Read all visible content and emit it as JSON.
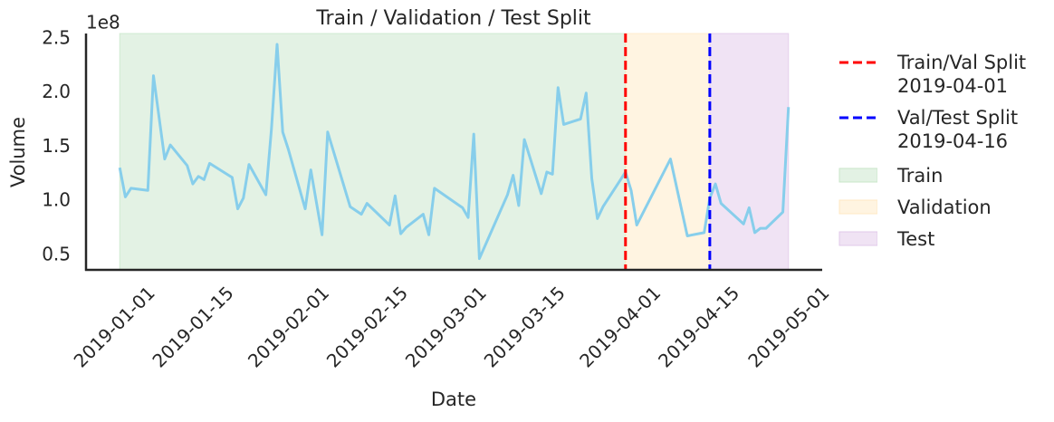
{
  "chart_data": {
    "type": "line",
    "title": "Train / Validation / Test Split",
    "xlabel": "Date",
    "ylabel": "Volume",
    "y_offset_text": "1e8",
    "x": [
      "2019-01-01",
      "2019-01-02",
      "2019-01-03",
      "2019-01-06",
      "2019-01-07",
      "2019-01-09",
      "2019-01-10",
      "2019-01-13",
      "2019-01-14",
      "2019-01-15",
      "2019-01-16",
      "2019-01-17",
      "2019-01-21",
      "2019-01-22",
      "2019-01-23",
      "2019-01-24",
      "2019-01-27",
      "2019-01-28",
      "2019-01-29",
      "2019-01-30",
      "2019-01-31",
      "2019-02-03",
      "2019-02-04",
      "2019-02-06",
      "2019-02-07",
      "2019-02-11",
      "2019-02-13",
      "2019-02-14",
      "2019-02-18",
      "2019-02-19",
      "2019-02-20",
      "2019-02-21",
      "2019-02-24",
      "2019-02-25",
      "2019-02-26",
      "2019-03-03",
      "2019-03-04",
      "2019-03-05",
      "2019-03-06",
      "2019-03-11",
      "2019-03-12",
      "2019-03-13",
      "2019-03-14",
      "2019-03-17",
      "2019-03-18",
      "2019-03-19",
      "2019-03-20",
      "2019-03-21",
      "2019-03-24",
      "2019-03-25",
      "2019-03-26",
      "2019-03-27",
      "2019-03-28",
      "2019-03-31",
      "2019-04-01",
      "2019-04-02",
      "2019-04-03",
      "2019-04-09",
      "2019-04-12",
      "2019-04-15",
      "2019-04-16",
      "2019-04-17",
      "2019-04-18",
      "2019-04-22",
      "2019-04-23",
      "2019-04-24",
      "2019-04-25",
      "2019-04-26",
      "2019-04-29",
      "2019-04-30"
    ],
    "series": [
      {
        "color": "#87ceeb",
        "values": [
          1.31,
          1.04,
          1.12,
          1.1,
          2.16,
          1.39,
          1.52,
          1.33,
          1.16,
          1.23,
          1.2,
          1.35,
          1.22,
          0.93,
          1.03,
          1.34,
          1.06,
          1.67,
          2.45,
          1.64,
          1.48,
          0.93,
          1.29,
          0.69,
          1.64,
          0.95,
          0.88,
          0.98,
          0.78,
          1.05,
          0.7,
          0.76,
          0.88,
          0.69,
          1.12,
          0.94,
          0.85,
          1.62,
          0.47,
          1.06,
          1.24,
          0.96,
          1.57,
          1.07,
          1.27,
          1.25,
          2.05,
          1.71,
          1.76,
          2.0,
          1.21,
          0.84,
          0.95,
          1.19,
          1.27,
          1.1,
          0.78,
          1.39,
          0.68,
          0.71,
          1.03,
          1.16,
          0.98,
          0.79,
          0.94,
          0.71,
          0.75,
          0.75,
          0.9,
          1.87
        ]
      }
    ],
    "spans": [
      {
        "name": "Train",
        "start": "2019-01-01",
        "end": "2019-04-01",
        "color": "#c8e6c9"
      },
      {
        "name": "Validation",
        "start": "2019-04-01",
        "end": "2019-04-16",
        "color": "#ffe9c4"
      },
      {
        "name": "Test",
        "start": "2019-04-16",
        "end": "2019-04-30",
        "color": "#e1c8ea"
      }
    ],
    "vlines": [
      {
        "name": "Train/Val Split\n2019-04-01",
        "x": "2019-04-01",
        "color": "#ff0000"
      },
      {
        "name": "Val/Test Split\n2019-04-16",
        "x": "2019-04-16",
        "color": "#0000ff"
      }
    ],
    "xlim": [
      "2018-12-26",
      "2019-05-06"
    ],
    "xticks": [
      "2019-01-01",
      "2019-01-15",
      "2019-02-01",
      "2019-02-15",
      "2019-03-01",
      "2019-03-15",
      "2019-04-01",
      "2019-04-15",
      "2019-05-01"
    ],
    "ylim": [
      0.366,
      2.55
    ],
    "yticks": [
      0.5,
      {
        "value": 1,
        "label": "1.0"
      },
      1.5,
      {
        "value": 2,
        "label": "2.0"
      },
      2.5
    ],
    "grid": false,
    "legend": "outside right"
  }
}
